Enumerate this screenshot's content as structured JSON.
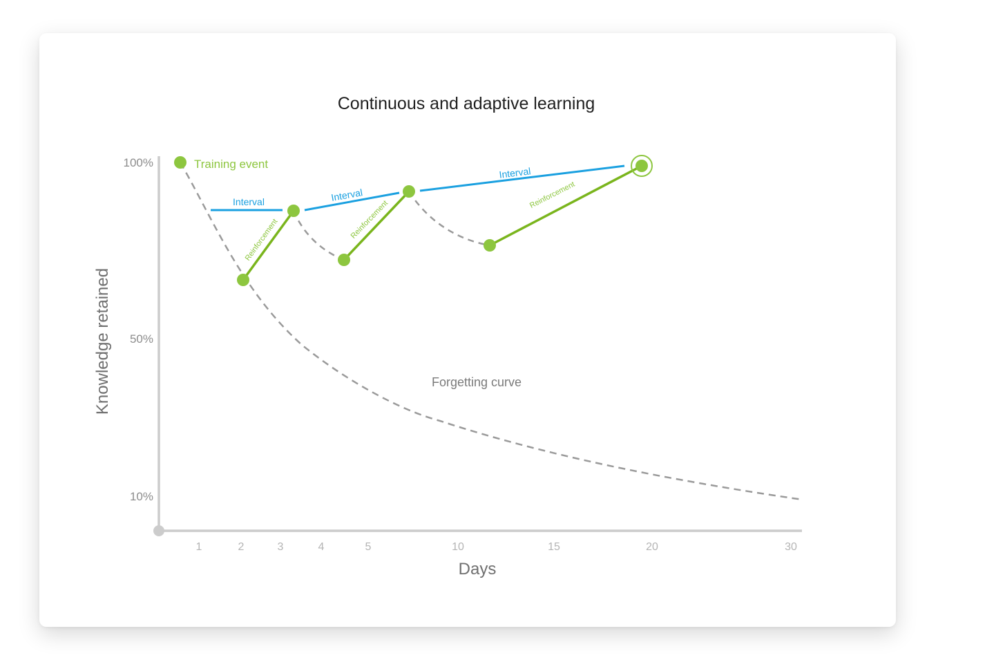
{
  "chart_data": {
    "type": "line",
    "title": "Continuous and adaptive learning",
    "xlabel": "Days",
    "ylabel": "Knowledge retained",
    "x_ticks": [
      "1",
      "2",
      "3",
      "4",
      "5",
      "10",
      "15",
      "20",
      "30"
    ],
    "y_ticks": [
      "100%",
      "50%",
      "10%"
    ],
    "annotations": {
      "training_event": "Training event",
      "forgetting_curve": "Forgetting curve"
    },
    "interval_label": "Interval",
    "reinforcement_label": "Reinforcement",
    "colors": {
      "training": "#8dc63f",
      "reinforcement": "#7ab51d",
      "interval": "#1aa0e0",
      "forgetting": "#9a9a9a",
      "axis": "#cccccc"
    }
  }
}
